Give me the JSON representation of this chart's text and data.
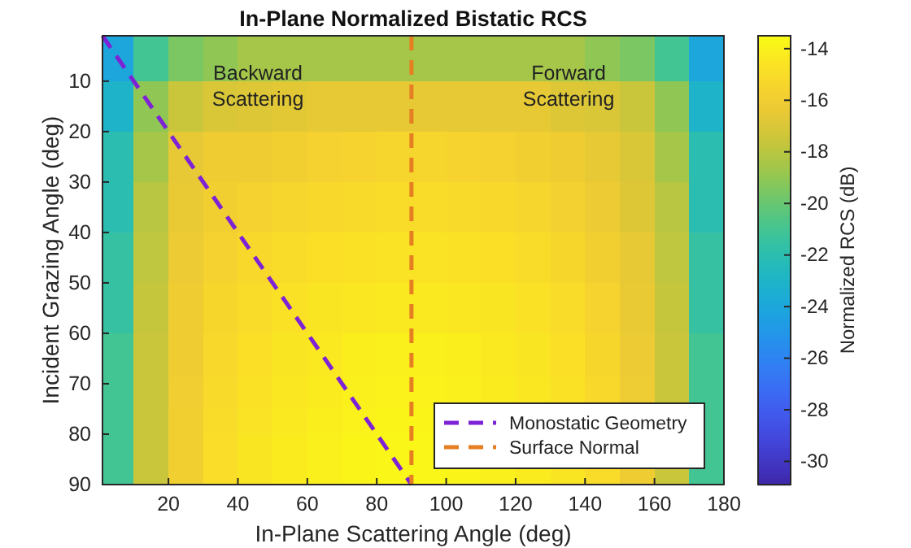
{
  "chart_data": {
    "type": "heatmap",
    "title": "In-Plane Normalized Bistatic RCS",
    "xlabel": "In-Plane Scattering Angle (deg)",
    "ylabel": "Incident Grazing Angle (deg)",
    "clabel": "Normalized RCS (dB)",
    "x": [
      5,
      15,
      25,
      35,
      45,
      55,
      65,
      75,
      85,
      95,
      105,
      115,
      125,
      135,
      145,
      155,
      165,
      175
    ],
    "y": [
      5,
      15,
      25,
      35,
      45,
      55,
      65,
      72.5,
      77.5,
      82.5,
      87.5
    ],
    "cells": [
      [
        -24,
        -21,
        -19.5,
        -19,
        -18.5,
        -18.5,
        -18.5,
        -18.5,
        -18.5,
        -18.5,
        -18.5,
        -18.5,
        -18.5,
        -18.5,
        -19,
        -19.5,
        -21,
        -24
      ],
      [
        -23,
        -19,
        -17.5,
        -17,
        -16.8,
        -16.6,
        -16.5,
        -16.5,
        -16.5,
        -16.5,
        -16.5,
        -16.5,
        -16.5,
        -16.8,
        -17,
        -17.5,
        -19,
        -23
      ],
      [
        -22,
        -18.5,
        -16.5,
        -16,
        -16,
        -15.8,
        -15.6,
        -15.5,
        -15.4,
        -15.4,
        -15.5,
        -15.6,
        -15.8,
        -16,
        -16.5,
        -17,
        -18.5,
        -22
      ],
      [
        -22,
        -18,
        -16.3,
        -15.8,
        -15.6,
        -15.4,
        -15.2,
        -15.1,
        -15,
        -15,
        -15.1,
        -15.2,
        -15.4,
        -15.7,
        -16.2,
        -16.8,
        -18,
        -22
      ],
      [
        -21.5,
        -17.8,
        -16.2,
        -15.6,
        -15.2,
        -15,
        -14.8,
        -14.7,
        -14.6,
        -14.6,
        -14.7,
        -14.8,
        -15,
        -15.3,
        -15.8,
        -16.5,
        -17.8,
        -21.5
      ],
      [
        -21.5,
        -17.6,
        -16,
        -15.3,
        -15,
        -14.7,
        -14.5,
        -14.4,
        -14.3,
        -14.3,
        -14.4,
        -14.5,
        -14.7,
        -15,
        -15.5,
        -16.3,
        -17.6,
        -21.5
      ],
      [
        -21,
        -17.5,
        -16,
        -15.2,
        -14.8,
        -14.5,
        -14.3,
        -14.1,
        -14,
        -14,
        -14.1,
        -14.3,
        -14.5,
        -14.8,
        -15.3,
        -16.2,
        -17.5,
        -21
      ],
      [
        -21,
        -17.5,
        -15.9,
        -15.1,
        -14.7,
        -14.4,
        -14.2,
        -14,
        -13.9,
        -13.9,
        -14,
        -14.2,
        -14.4,
        -14.7,
        -15.2,
        -16.1,
        -17.5,
        -21
      ],
      [
        -21,
        -17.5,
        -15.8,
        -15,
        -14.6,
        -14.3,
        -14.1,
        -13.9,
        -13.8,
        -13.8,
        null,
        null,
        null,
        null,
        null,
        null,
        null,
        -21
      ],
      [
        -21,
        -17.5,
        -15.8,
        -14.9,
        -14.5,
        -14.2,
        -14,
        -13.8,
        -13.7,
        -13.7,
        null,
        null,
        null,
        null,
        null,
        null,
        null,
        -21
      ],
      [
        -21,
        -17.5,
        -15.8,
        -14.9,
        -14.5,
        -14.2,
        -14,
        -13.8,
        -13.7,
        -13.7,
        -13.8,
        -14,
        -14.2,
        -14.5,
        -15,
        -16,
        -17.5,
        -21
      ]
    ],
    "series": [
      {
        "type": "line",
        "name": "Monostatic Geometry",
        "color": "#7e22d6",
        "line_style": "dashed",
        "x": [
          1,
          30,
          60,
          90
        ],
        "values": [
          1,
          30,
          60,
          90
        ]
      },
      {
        "type": "line",
        "name": "Surface Normal",
        "color": "#e67e22",
        "line_style": "dashed",
        "x": [
          90,
          90,
          90
        ],
        "values": [
          1,
          45,
          90
        ]
      }
    ],
    "annotations": [
      "Backward\nScattering",
      "Forward\nScattering"
    ],
    "xlim": [
      1,
      180
    ],
    "ylim": [
      90,
      1
    ],
    "xticks": [
      20,
      40,
      60,
      80,
      100,
      120,
      140,
      160,
      180
    ],
    "yticks": [
      10,
      20,
      30,
      40,
      50,
      60,
      70,
      80,
      90
    ],
    "clim": [
      -30.9,
      -13.5
    ],
    "cticks": [
      -30,
      -28,
      -26,
      -24,
      -22,
      -20,
      -18,
      -16,
      -14
    ],
    "legend": "bottom right",
    "grid": false
  }
}
